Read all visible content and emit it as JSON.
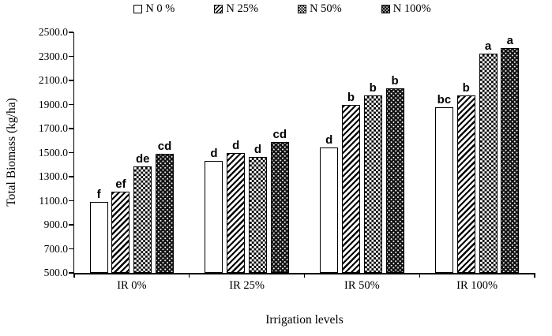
{
  "colors": {
    "foreground": "#000000",
    "background": "#ffffff"
  },
  "legend": {
    "position": "top",
    "items": [
      {
        "label": "N 0 %",
        "pattern": "plain"
      },
      {
        "label": "N 25%",
        "pattern": "diagonal"
      },
      {
        "label": "N 50%",
        "pattern": "checker"
      },
      {
        "label": "N 100%",
        "pattern": "dots"
      }
    ]
  },
  "y_axis": {
    "title": "Total Biomass (kg/ha)",
    "min": 500,
    "max": 2500,
    "tick_step": 200,
    "tick_labels": [
      "2500.0",
      "2300.0",
      "2100.0",
      "1900.0",
      "1700.0",
      "1500.0",
      "1300.0",
      "1100.0",
      "900.0",
      "700.0",
      "500.0"
    ]
  },
  "x_axis": {
    "title": "Irrigation levels",
    "categories": [
      "IR 0%",
      "IR 25%",
      "IR 50%",
      "IR 100%"
    ]
  },
  "chart_data": {
    "type": "bar",
    "title": "",
    "xlabel": "Irrigation levels",
    "ylabel": "Total Biomass (kg/ha)",
    "ylim": [
      500,
      2500
    ],
    "ytick_interval": 200,
    "grid": false,
    "legend_position": "top",
    "categories": [
      "IR 0%",
      "IR 25%",
      "IR 50%",
      "IR 100%"
    ],
    "series": [
      {
        "name": "N 0 %",
        "pattern": "plain",
        "values": [
          1090,
          1430,
          1545,
          1880
        ],
        "sig_labels": [
          "f",
          "d",
          "d",
          "bc"
        ]
      },
      {
        "name": "N 25%",
        "pattern": "diagonal",
        "values": [
          1175,
          1500,
          1900,
          1975
        ],
        "sig_labels": [
          "ef",
          "d",
          "b",
          "b"
        ]
      },
      {
        "name": "N 50%",
        "pattern": "checker",
        "values": [
          1385,
          1465,
          1975,
          2325
        ],
        "sig_labels": [
          "de",
          "d",
          "b",
          "a"
        ]
      },
      {
        "name": "N 100%",
        "pattern": "dots",
        "values": [
          1490,
          1590,
          2035,
          2370
        ],
        "sig_labels": [
          "cd",
          "cd",
          "b",
          "a"
        ]
      }
    ]
  }
}
